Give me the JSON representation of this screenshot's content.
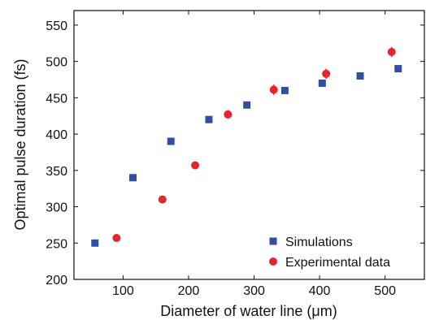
{
  "chart_data": {
    "type": "scatter",
    "title": "",
    "xlabel": "Diameter of water line (μm)",
    "ylabel": "Optimal pulse duration (fs)",
    "xlim": [
      25,
      560
    ],
    "ylim": [
      200,
      570
    ],
    "xticks": [
      100,
      200,
      300,
      400,
      500
    ],
    "yticks": [
      200,
      250,
      300,
      350,
      400,
      450,
      500,
      550
    ],
    "grid": false,
    "legend_position": "bottom-right",
    "series": [
      {
        "name": "Simulations",
        "marker": "square",
        "color": "#2f4fa3",
        "points": [
          {
            "x": 57,
            "y": 250
          },
          {
            "x": 115,
            "y": 340
          },
          {
            "x": 173,
            "y": 390
          },
          {
            "x": 231,
            "y": 420
          },
          {
            "x": 289,
            "y": 440
          },
          {
            "x": 347,
            "y": 460
          },
          {
            "x": 404,
            "y": 470
          },
          {
            "x": 462,
            "y": 480
          },
          {
            "x": 520,
            "y": 490
          }
        ]
      },
      {
        "name": "Experimental data",
        "marker": "circle",
        "color": "#e8242b",
        "points": [
          {
            "x": 90,
            "y": 257,
            "err": 3
          },
          {
            "x": 160,
            "y": 310,
            "err": 3
          },
          {
            "x": 210,
            "y": 357,
            "err": 4
          },
          {
            "x": 260,
            "y": 427,
            "err": 6
          },
          {
            "x": 330,
            "y": 461,
            "err": 7
          },
          {
            "x": 410,
            "y": 483,
            "err": 7
          },
          {
            "x": 510,
            "y": 513,
            "err": 7
          }
        ]
      }
    ]
  }
}
